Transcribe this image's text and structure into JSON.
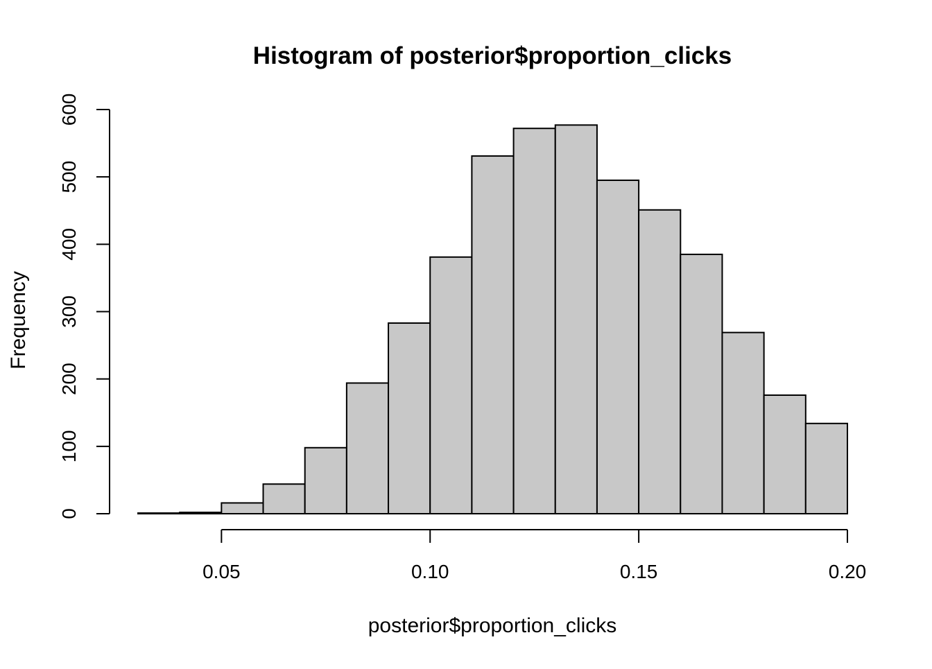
{
  "chart_data": {
    "type": "bar",
    "title": "Histogram of posterior$proportion_clicks",
    "xlabel": "posterior$proportion_clicks",
    "ylabel": "Frequency",
    "bin_edges": [
      0.03,
      0.04,
      0.05,
      0.06,
      0.07,
      0.08,
      0.09,
      0.1,
      0.11,
      0.12,
      0.13,
      0.14,
      0.15,
      0.16,
      0.17,
      0.18,
      0.19,
      0.2
    ],
    "values": [
      1,
      2,
      16,
      44,
      98,
      194,
      283,
      381,
      531,
      572,
      577,
      495,
      451,
      385,
      269,
      176,
      134
    ],
    "xlim": [
      0.03,
      0.2
    ],
    "ylim": [
      0,
      600
    ],
    "x_ticks": [
      0.05,
      0.1,
      0.15,
      0.2
    ],
    "x_tick_labels": [
      "0.05",
      "0.10",
      "0.15",
      "0.20"
    ],
    "y_ticks": [
      0,
      100,
      200,
      300,
      400,
      500,
      600
    ],
    "y_tick_labels": [
      "0",
      "100",
      "200",
      "300",
      "400",
      "500",
      "600"
    ],
    "grid": false,
    "legend": false,
    "colors": {
      "bar_fill": "#c8c8c8",
      "bar_stroke": "#000000",
      "axis": "#000000",
      "background": "#ffffff"
    }
  }
}
